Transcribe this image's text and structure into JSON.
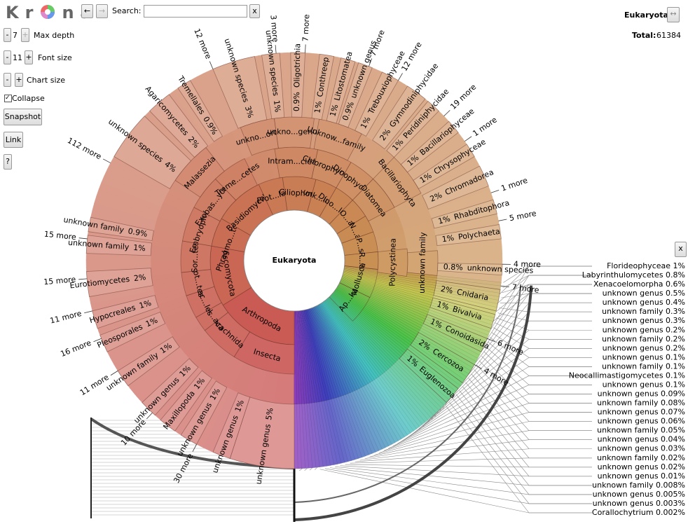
{
  "toolbar": {
    "logo_left": "Kr",
    "logo_right": "na",
    "back": "←",
    "forward": "→",
    "search_label": "Search:",
    "search_clear": "x",
    "max_depth": {
      "minus": "-",
      "value": "7",
      "plus": "+",
      "label": "Max depth"
    },
    "font_size": {
      "minus": "-",
      "value": "11",
      "plus": "+",
      "label": "Font size"
    },
    "chart_size": {
      "minus": "-",
      "plus": "+",
      "label": "Chart size"
    },
    "collapse": "Collapse",
    "snapshot": "Snapshot",
    "link": "Link",
    "help": "?"
  },
  "details": {
    "name": "Eukaryota",
    "expand": "↔",
    "total_label": "Total:",
    "total": 61384
  },
  "chart": {
    "root": "Eukaryota",
    "rings": [
      [
        "Arthropoda",
        "Ascomycota",
        "Phragmo...tophyta",
        "Basidiomycota",
        "Prot...lata",
        "Ciliophora",
        "unk...lum",
        "Dino...lata",
        "O...a",
        "N...a",
        "P...s",
        "R...a",
        "Mollusca",
        "Ap...ka"
      ],
      [
        "Insecta",
        "Arachnida",
        "Mal...aca",
        "Sac...les",
        "Dot...tes",
        "Sor...tes",
        "Embryophyta",
        "Exobas...ycetes",
        "Treme...cetes",
        "Intram...cleata",
        "Chlorophyceae",
        "Dinophyceae",
        "Diatomea",
        "Polycystinea"
      ],
      [
        "Malassezia",
        "unkno...order",
        "unkno...genus",
        "Unknow...family",
        "Bacillariophyta",
        "unknown family"
      ]
    ],
    "leaves": [
      {
        "name": "unknown genus",
        "pct": "5%"
      },
      {
        "name": "unknown genus",
        "pct": "1%"
      },
      {
        "name": "unknown genus",
        "pct": "1%"
      },
      {
        "name": "Maxillopoda",
        "pct": "1%"
      },
      {
        "name": "unknown genus",
        "pct": "1%"
      },
      {
        "name": "unknown family",
        "pct": "1%"
      },
      {
        "name": "Pleosporales",
        "pct": "1%"
      },
      {
        "name": "Hypocreales",
        "pct": "1%"
      },
      {
        "name": "Eurotiomycetes",
        "pct": "2%"
      },
      {
        "name": "unknown family",
        "pct": "1%"
      },
      {
        "name": "unknown family",
        "pct": "0.9%"
      },
      {
        "name": "unknown species",
        "pct": "4%"
      },
      {
        "name": "Agaricomycetes",
        "pct": "2%"
      },
      {
        "name": "Tremellales",
        "pct": "0.9%"
      },
      {
        "name": "unknown species",
        "pct": "3%"
      },
      {
        "name": "unknown species",
        "pct": "1%"
      },
      {
        "name": "Oligotrichia",
        "pct": "0.9%"
      },
      {
        "name": "Conthreep",
        "pct": "1%"
      },
      {
        "name": "Litostomatea",
        "pct": "1%"
      },
      {
        "name": "unknown genus",
        "pct": "0.9%"
      },
      {
        "name": "Trebouxiophyceae",
        "pct": "1%"
      },
      {
        "name": "Gymnodiniphycidae",
        "pct": "2%"
      },
      {
        "name": "Peridiniphycidae",
        "pct": "1%"
      },
      {
        "name": "Bacillariophyceae",
        "pct": "1%"
      },
      {
        "name": "Chrysophyceae",
        "pct": "1%"
      },
      {
        "name": "Chromadorea",
        "pct": "2%"
      },
      {
        "name": "Rhabditophora",
        "pct": "1%"
      },
      {
        "name": "Polychaeta",
        "pct": "1%"
      },
      {
        "name": "unknown species",
        "pct": "0.8%"
      },
      {
        "name": "Cnidaria",
        "pct": "2%"
      },
      {
        "name": "Bivalvia",
        "pct": "1%"
      },
      {
        "name": "Conoidasida",
        "pct": "1%"
      },
      {
        "name": "Cercozoa",
        "pct": "2%"
      },
      {
        "name": "Euglenozoa",
        "pct": "1%"
      }
    ],
    "more": [
      "30 more",
      "10 more",
      "11 more",
      "16 more",
      "11 more",
      "15 more",
      "15 more",
      "112 more",
      "12 more",
      "3 more",
      "7 more",
      "7 more",
      "12 more",
      "19 more",
      "1 more",
      "1 more",
      "5 more",
      "4 more",
      "7 more",
      "6 more",
      "4 more"
    ],
    "list_close": "x",
    "list": [
      "Florideophyceae 1%",
      "Labyrinthulomycetes 0.8%",
      "Xenacoelomorpha 0.6%",
      "unknown genus 0.5%",
      "unknown genus 0.4%",
      "unknown family 0.3%",
      "unknown genus 0.3%",
      "unknown genus 0.2%",
      "unknown family 0.2%",
      "unknown genus 0.2%",
      "unknown genus 0.1%",
      "unknown family 0.1%",
      "Neocallimastigomycetes 0.1%",
      "unknown genus 0.1%",
      "unknown genus 0.09%",
      "unknown family 0.08%",
      "unknown genus 0.07%",
      "unknown genus 0.06%",
      "unknown family 0.05%",
      "unknown genus 0.04%",
      "unknown genus 0.03%",
      "unknown family 0.02%",
      "unknown genus 0.02%",
      "unknown genus 0.01%",
      "unknown family 0.008%",
      "unknown genus 0.005%",
      "unknown genus 0.003%",
      "Corallochytrium 0.002%"
    ]
  }
}
